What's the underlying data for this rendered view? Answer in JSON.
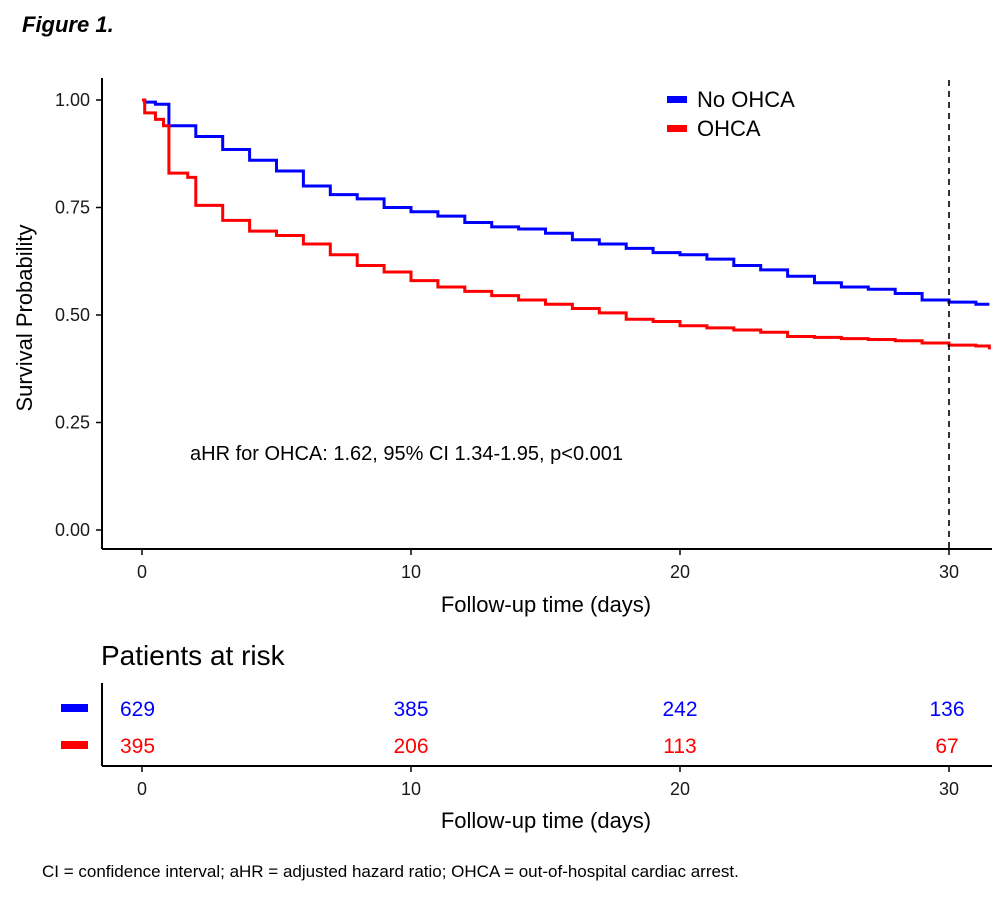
{
  "figure_label": "Figure 1.",
  "footnote": "CI = confidence interval; aHR = adjusted hazard ratio; OHCA = out-of-hospital cardiac arrest.",
  "chart_data": {
    "type": "line",
    "subtype": "kaplan-meier step",
    "title": "",
    "xlabel": "Follow-up time (days)",
    "ylabel": "Survival Probability",
    "xlim": [
      -1.5,
      31.5
    ],
    "ylim": [
      -0.05,
      1.05
    ],
    "x_ticks": [
      0,
      10,
      20,
      30
    ],
    "x_tick_labels": [
      "0",
      "10",
      "20",
      "30"
    ],
    "y_ticks": [
      0,
      0.25,
      0.5,
      0.75,
      1.0
    ],
    "y_tick_labels": [
      "0.00",
      "0.25",
      "0.50",
      "0.75",
      "1.00"
    ],
    "grid": false,
    "legend_position": "top-right",
    "reference_line": {
      "x": 30,
      "style": "dashed",
      "color": "#000000"
    },
    "annotation": "aHR for OHCA: 1.62, 95% CI 1.34-1.95, p<0.001",
    "series": [
      {
        "name": "No OHCA",
        "color": "#0000ff",
        "x": [
          0,
          0.1,
          0.5,
          1,
          1.5,
          2,
          3,
          4,
          5,
          6,
          7,
          8,
          9,
          10,
          11,
          12,
          13,
          14,
          15,
          16,
          17,
          18,
          19,
          20,
          21,
          22,
          23,
          24,
          25,
          26,
          27,
          28,
          29,
          30,
          31,
          31.5
        ],
        "y": [
          1.0,
          0.995,
          0.99,
          0.94,
          0.94,
          0.915,
          0.885,
          0.86,
          0.835,
          0.8,
          0.78,
          0.77,
          0.75,
          0.74,
          0.73,
          0.715,
          0.705,
          0.7,
          0.69,
          0.675,
          0.665,
          0.655,
          0.645,
          0.64,
          0.63,
          0.615,
          0.605,
          0.59,
          0.575,
          0.565,
          0.56,
          0.55,
          0.535,
          0.53,
          0.525,
          0.525
        ]
      },
      {
        "name": "OHCA",
        "color": "#ff0000",
        "x": [
          0,
          0.1,
          0.5,
          0.8,
          1,
          1.7,
          2,
          3,
          4,
          5,
          6,
          7,
          8,
          9,
          10,
          11,
          12,
          13,
          14,
          15,
          16,
          17,
          18,
          19,
          20,
          21,
          22,
          23,
          24,
          25,
          26,
          27,
          28,
          29,
          30,
          31,
          31.5
        ],
        "y": [
          1.0,
          0.97,
          0.955,
          0.94,
          0.83,
          0.82,
          0.755,
          0.72,
          0.695,
          0.685,
          0.665,
          0.64,
          0.615,
          0.6,
          0.58,
          0.565,
          0.555,
          0.545,
          0.535,
          0.525,
          0.515,
          0.505,
          0.49,
          0.485,
          0.475,
          0.47,
          0.465,
          0.46,
          0.45,
          0.448,
          0.445,
          0.443,
          0.44,
          0.435,
          0.43,
          0.428,
          0.42
        ]
      }
    ],
    "risk_table": {
      "title": "Patients at risk",
      "xlabel": "Follow-up time (days)",
      "times": [
        0,
        10,
        20,
        30
      ],
      "time_labels": [
        "0",
        "10",
        "20",
        "30"
      ],
      "rows": [
        {
          "name": "No OHCA",
          "color": "#0000ff",
          "counts": [
            "629",
            "385",
            "242",
            "136"
          ]
        },
        {
          "name": "OHCA",
          "color": "#ff0000",
          "counts": [
            "395",
            "206",
            "113",
            "67"
          ]
        }
      ]
    }
  }
}
